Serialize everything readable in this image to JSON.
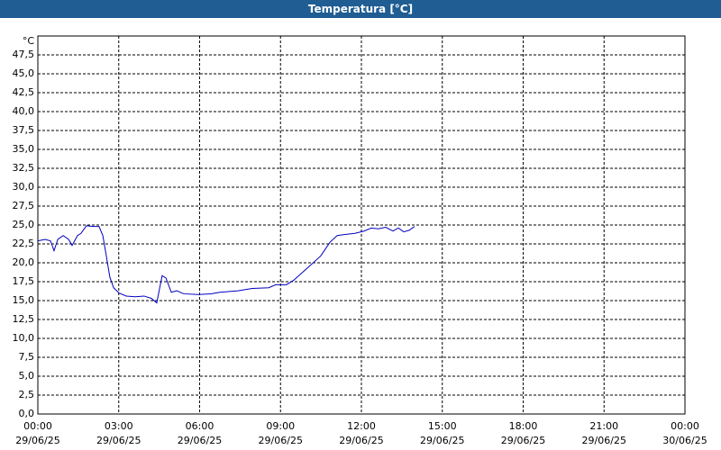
{
  "chart_data": {
    "type": "line",
    "title": "Temperatura [°C]",
    "y_unit": "°C",
    "x": [
      0,
      0.27,
      0.47,
      0.6,
      0.74,
      0.94,
      1.14,
      1.27,
      1.47,
      1.6,
      1.8,
      2.07,
      2.27,
      2.41,
      2.54,
      2.67,
      2.81,
      3.01,
      3.28,
      3.61,
      3.94,
      4.21,
      4.41,
      4.61,
      4.75,
      4.95,
      5.15,
      5.41,
      5.95,
      6.42,
      6.75,
      7.42,
      7.95,
      8.56,
      8.82,
      9.22,
      9.49,
      9.96,
      10.49,
      10.83,
      11.1,
      11.3,
      11.76,
      12.1,
      12.37,
      12.63,
      12.9,
      13.17,
      13.37,
      13.57,
      13.77,
      13.97
    ],
    "series": [
      {
        "color": "#0000c0",
        "values": [
          22.9,
          23.1,
          22.9,
          21.6,
          23.1,
          23.6,
          23.1,
          22.3,
          23.6,
          23.9,
          24.9,
          24.8,
          24.8,
          23.6,
          20.9,
          18.1,
          16.7,
          16.0,
          15.6,
          15.5,
          15.6,
          15.3,
          14.7,
          18.3,
          18.0,
          16.1,
          16.3,
          15.9,
          15.8,
          15.9,
          16.1,
          16.3,
          16.6,
          16.7,
          17.1,
          17.1,
          17.7,
          19.2,
          20.9,
          22.7,
          23.6,
          23.7,
          23.9,
          24.2,
          24.6,
          24.5,
          24.7,
          24.2,
          24.6,
          24.1,
          24.3,
          24.8
        ]
      }
    ],
    "xlim": [
      0,
      24
    ],
    "xticks": [
      {
        "value": 0,
        "label": "00:00",
        "date": "29/06/25"
      },
      {
        "value": 3,
        "label": "03:00",
        "date": "29/06/25"
      },
      {
        "value": 6,
        "label": "06:00",
        "date": "29/06/25"
      },
      {
        "value": 9,
        "label": "09:00",
        "date": "29/06/25"
      },
      {
        "value": 12,
        "label": "12:00",
        "date": "29/06/25"
      },
      {
        "value": 15,
        "label": "15:00",
        "date": "29/06/25"
      },
      {
        "value": 18,
        "label": "18:00",
        "date": "29/06/25"
      },
      {
        "value": 21,
        "label": "21:00",
        "date": "29/06/25"
      },
      {
        "value": 24,
        "label": "00:00",
        "date": "30/06/25"
      }
    ],
    "ylim": [
      0,
      50
    ],
    "yticks": [
      {
        "value": 0,
        "label": "0,0"
      },
      {
        "value": 2.5,
        "label": "2,5"
      },
      {
        "value": 5,
        "label": "5,0"
      },
      {
        "value": 7.5,
        "label": "7,5"
      },
      {
        "value": 10,
        "label": "10,0"
      },
      {
        "value": 12.5,
        "label": "12,5"
      },
      {
        "value": 15,
        "label": "15,0"
      },
      {
        "value": 17.5,
        "label": "17,5"
      },
      {
        "value": 20,
        "label": "20,0"
      },
      {
        "value": 22.5,
        "label": "22,5"
      },
      {
        "value": 25,
        "label": "25,0"
      },
      {
        "value": 27.5,
        "label": "27,5"
      },
      {
        "value": 30,
        "label": "30,0"
      },
      {
        "value": 32.5,
        "label": "32,5"
      },
      {
        "value": 35,
        "label": "35,0"
      },
      {
        "value": 37.5,
        "label": "37,5"
      },
      {
        "value": 40,
        "label": "40,0"
      },
      {
        "value": 42.5,
        "label": "42,5"
      },
      {
        "value": 45,
        "label": "45,0"
      },
      {
        "value": 47.5,
        "label": "47,5"
      }
    ],
    "grid": true
  }
}
